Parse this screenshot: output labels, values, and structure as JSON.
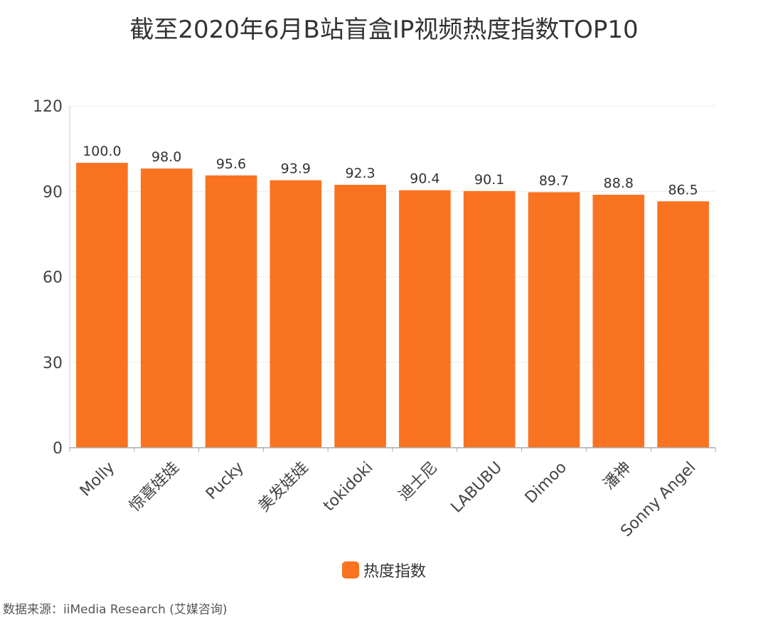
{
  "chart_data": {
    "type": "bar",
    "title": "截至2020年6月B站盲盒IP视频热度指数TOP10",
    "categories": [
      "Molly",
      "惊喜娃娃",
      "Pucky",
      "美发娃娃",
      "tokidoki",
      "迪士尼",
      "LABUBU",
      "Dimoo",
      "潘神",
      "Sonny Angel"
    ],
    "series": [
      {
        "name": "热度指数",
        "values": [
          100.0,
          98.0,
          95.6,
          93.9,
          92.3,
          90.4,
          90.1,
          89.7,
          88.8,
          86.5
        ],
        "labels": [
          "100.0",
          "98.0",
          "95.6",
          "93.9",
          "92.3",
          "90.4",
          "90.1",
          "89.7",
          "88.8",
          "86.5"
        ],
        "color": "#fa7320"
      }
    ],
    "ylim": [
      0,
      120
    ],
    "yticks": [
      0,
      30,
      60,
      90,
      120
    ],
    "xlabel": "",
    "ylabel": "",
    "grid": true,
    "legend_position": "bottom-center",
    "x_tick_rotation": "45-degree"
  },
  "source": "数据来源：iiMedia Research (艾媒咨询)"
}
